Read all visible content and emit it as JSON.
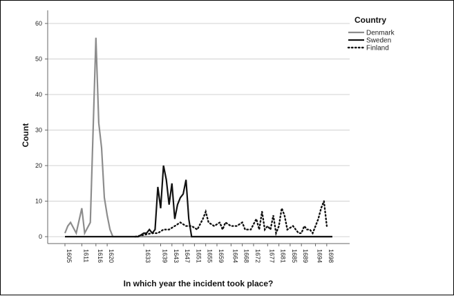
{
  "chart_data": {
    "type": "line",
    "title": "",
    "xlabel": "In which year the incident took place?",
    "ylabel": "Count",
    "ylim": [
      0,
      60
    ],
    "yticks": [
      0,
      10,
      20,
      30,
      40,
      50,
      60
    ],
    "grid": true,
    "legend_title": "Country",
    "legend_position": "top-right",
    "x_ticks": [
      "1605",
      "1611",
      "1616",
      "1620",
      "1633",
      "1639",
      "1643",
      "1647",
      "1651",
      "1655",
      "1659",
      "1664",
      "1668",
      "1672",
      "1677",
      "1681",
      "1685",
      "1689",
      "1694",
      "1698"
    ],
    "x_range": [
      1605,
      1700
    ],
    "series": [
      {
        "name": "Denmark",
        "color": "#8c8c8c",
        "style": "solid",
        "points": [
          [
            1605,
            1
          ],
          [
            1606,
            3
          ],
          [
            1607,
            4
          ],
          [
            1609,
            1
          ],
          [
            1611,
            8
          ],
          [
            1612,
            1
          ],
          [
            1614,
            4
          ],
          [
            1616,
            56
          ],
          [
            1617,
            32
          ],
          [
            1618,
            25
          ],
          [
            1619,
            11
          ],
          [
            1620,
            6
          ],
          [
            1621,
            2
          ],
          [
            1622,
            0
          ],
          [
            1700,
            0
          ]
        ]
      },
      {
        "name": "Sweden",
        "color": "#111111",
        "style": "solid",
        "points": [
          [
            1605,
            0
          ],
          [
            1631,
            0
          ],
          [
            1633,
            1
          ],
          [
            1634,
            1
          ],
          [
            1635,
            2
          ],
          [
            1636,
            1
          ],
          [
            1637,
            2
          ],
          [
            1638,
            14
          ],
          [
            1639,
            8
          ],
          [
            1640,
            20
          ],
          [
            1641,
            16
          ],
          [
            1642,
            9
          ],
          [
            1643,
            15
          ],
          [
            1644,
            5
          ],
          [
            1645,
            9
          ],
          [
            1646,
            11
          ],
          [
            1647,
            12
          ],
          [
            1648,
            16
          ],
          [
            1649,
            5
          ],
          [
            1650,
            0
          ],
          [
            1700,
            0
          ]
        ]
      },
      {
        "name": "Finland",
        "color": "#111111",
        "style": "dotted",
        "points": [
          [
            1630,
            0
          ],
          [
            1636,
            1
          ],
          [
            1638,
            1
          ],
          [
            1640,
            2
          ],
          [
            1642,
            2
          ],
          [
            1644,
            3
          ],
          [
            1646,
            4
          ],
          [
            1648,
            3
          ],
          [
            1650,
            3
          ],
          [
            1652,
            2
          ],
          [
            1654,
            5
          ],
          [
            1655,
            7
          ],
          [
            1656,
            4
          ],
          [
            1658,
            3
          ],
          [
            1660,
            4
          ],
          [
            1661,
            2
          ],
          [
            1662,
            4
          ],
          [
            1664,
            3
          ],
          [
            1666,
            3
          ],
          [
            1668,
            4
          ],
          [
            1669,
            2
          ],
          [
            1671,
            2
          ],
          [
            1673,
            5
          ],
          [
            1674,
            2
          ],
          [
            1675,
            7
          ],
          [
            1676,
            2
          ],
          [
            1677,
            3
          ],
          [
            1678,
            2
          ],
          [
            1679,
            6
          ],
          [
            1680,
            1
          ],
          [
            1681,
            3
          ],
          [
            1682,
            8
          ],
          [
            1683,
            6
          ],
          [
            1684,
            2
          ],
          [
            1686,
            3
          ],
          [
            1687,
            2
          ],
          [
            1688,
            1
          ],
          [
            1689,
            1
          ],
          [
            1690,
            3
          ],
          [
            1691,
            2
          ],
          [
            1692,
            2
          ],
          [
            1693,
            1
          ],
          [
            1694,
            3
          ],
          [
            1695,
            5
          ],
          [
            1696,
            8
          ],
          [
            1697,
            10
          ],
          [
            1698,
            3
          ]
        ]
      }
    ]
  }
}
